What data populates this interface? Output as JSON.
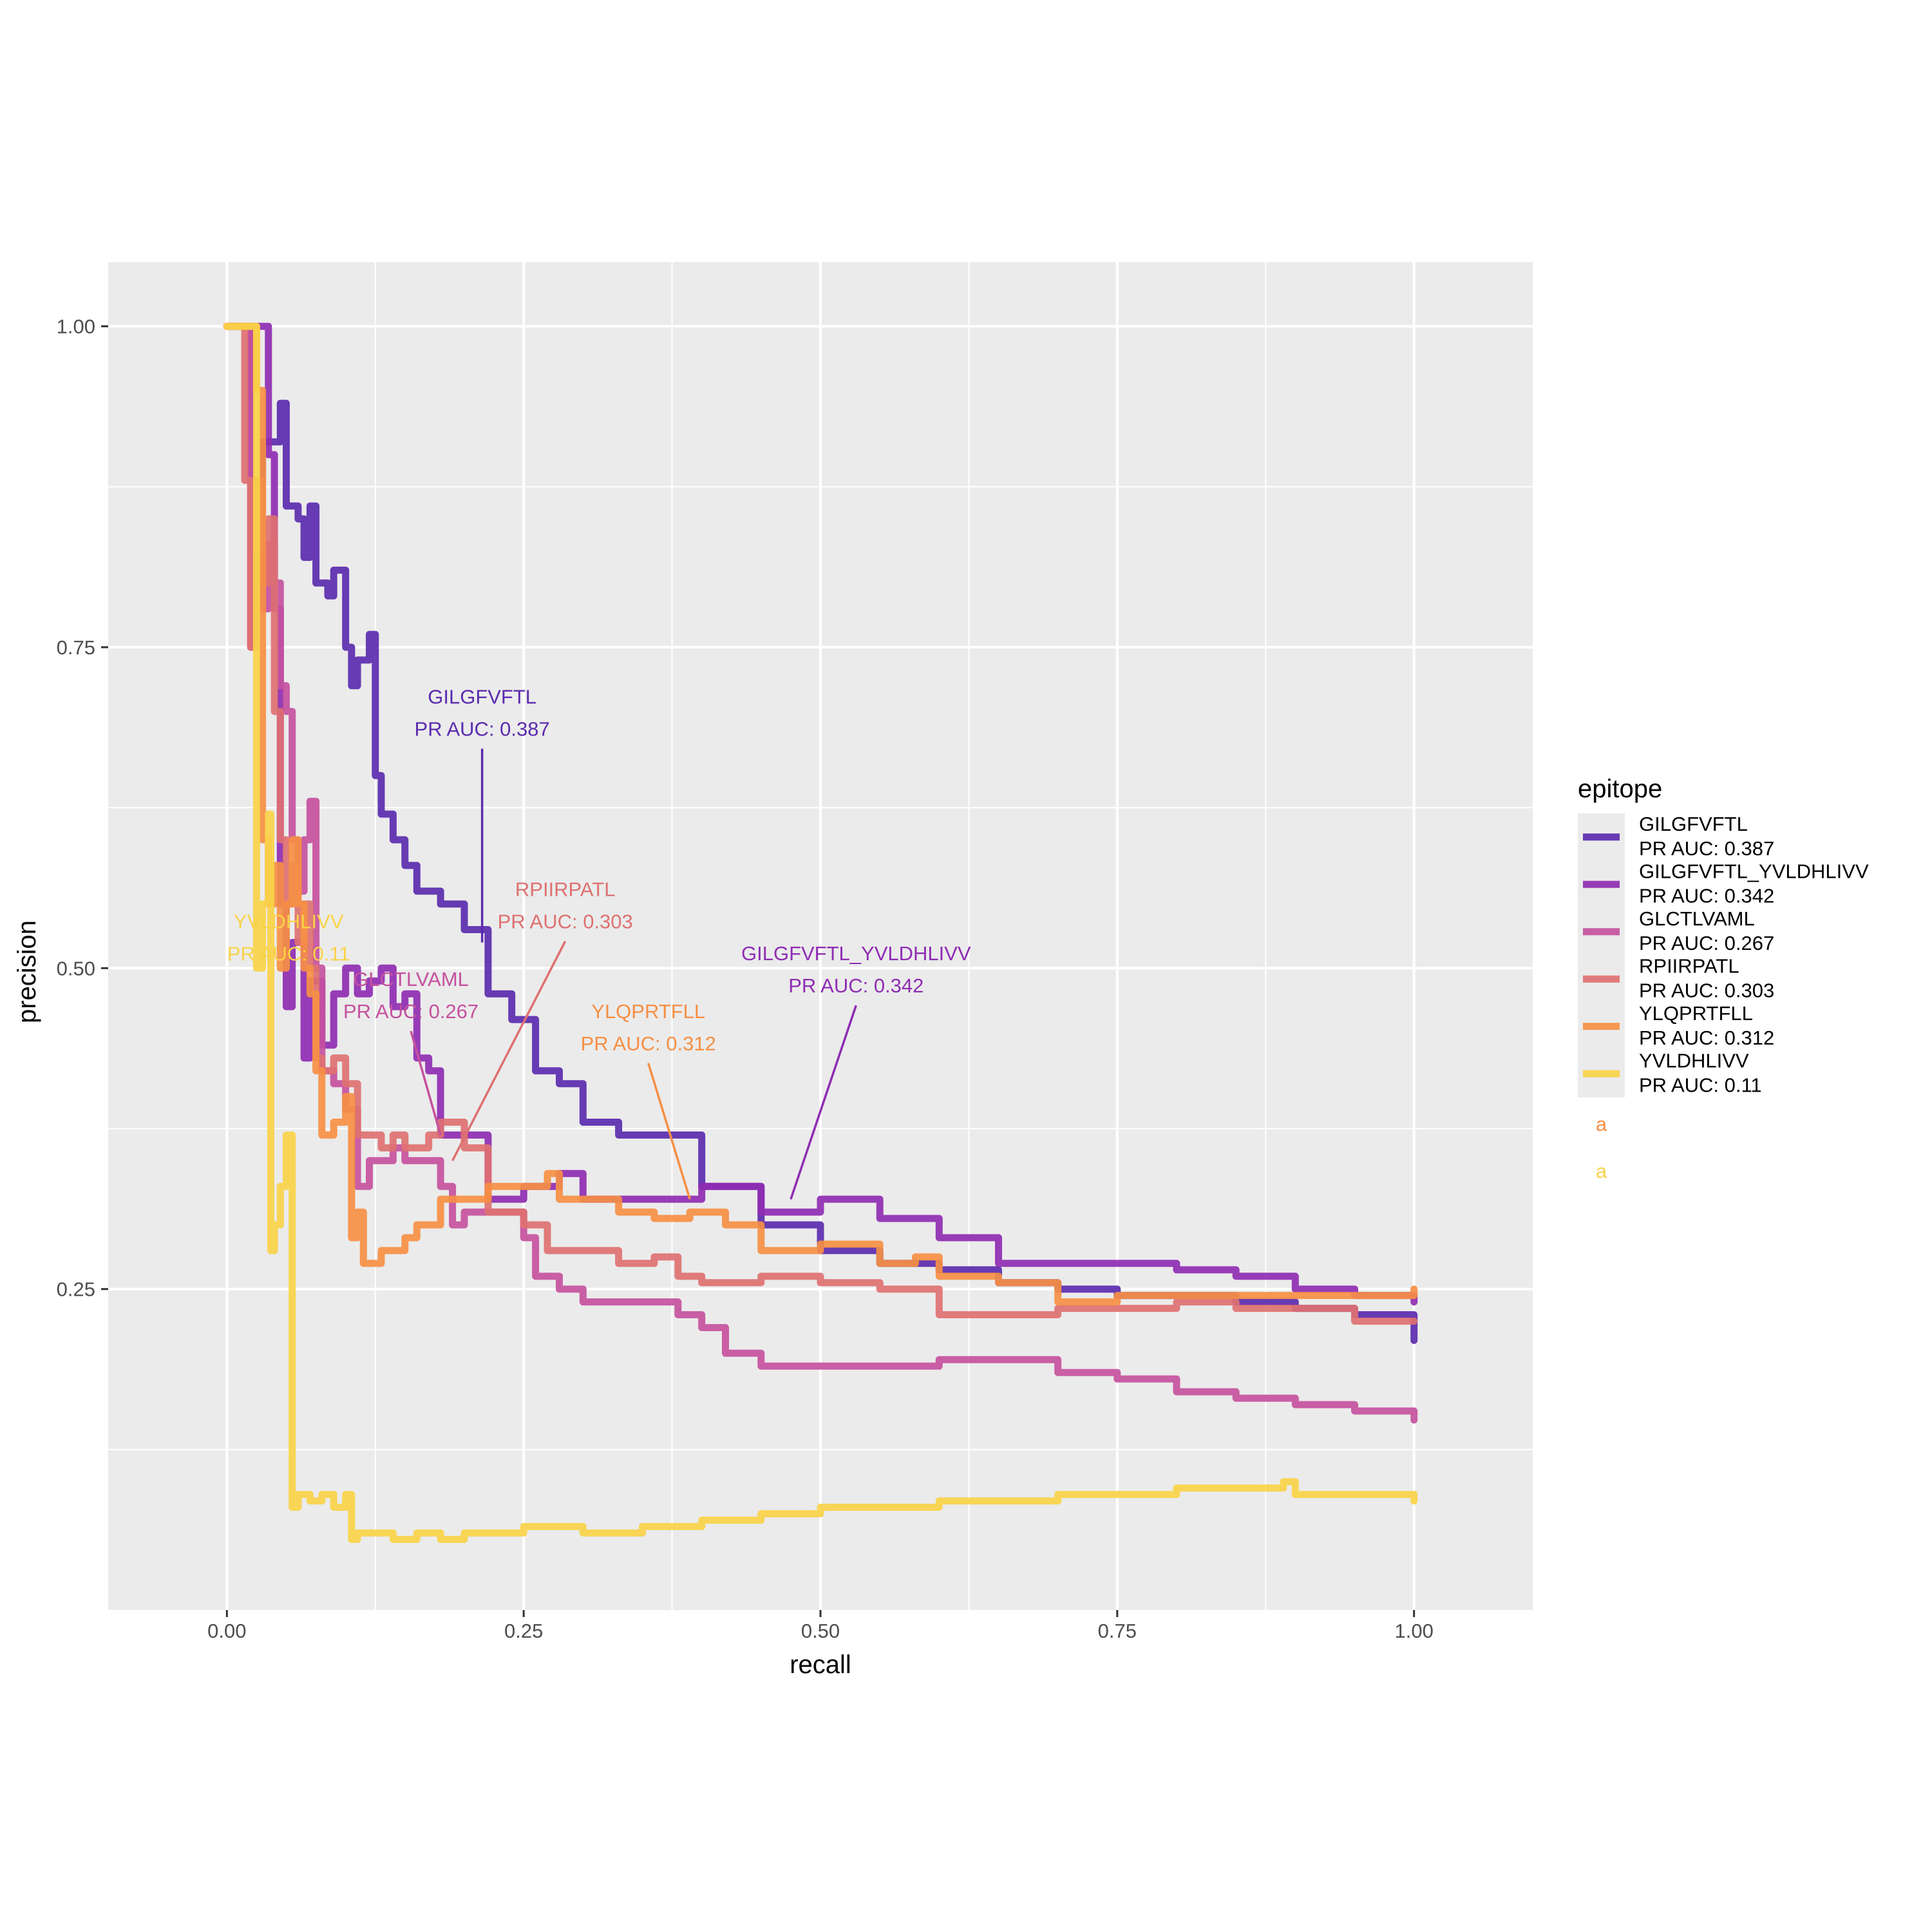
{
  "chart_data": {
    "type": "line",
    "xlabel": "recall",
    "ylabel": "precision",
    "xlim": [
      -0.1,
      1.1
    ],
    "ylim": [
      0.0,
      1.05
    ],
    "x_ticks": [
      0.0,
      0.25,
      0.5,
      0.75,
      1.0
    ],
    "x_tick_labels": [
      "0.00",
      "0.25",
      "0.50",
      "0.75",
      "1.00"
    ],
    "y_ticks": [
      0.25,
      0.5,
      0.75,
      1.0
    ],
    "y_tick_labels": [
      "0.25",
      "0.50",
      "0.75",
      "1.00"
    ],
    "grid": true,
    "legend": {
      "title": "epitope",
      "placement": "right",
      "extra_keys": [
        {
          "text": "a",
          "color": "#F68F44"
        },
        {
          "text": "a",
          "color": "#F9D348"
        }
      ]
    },
    "series": [
      {
        "name": "GILGFVFTL",
        "label": "PR AUC: 0.387",
        "color": "#5B2BAE",
        "annotation": {
          "x": 0.215,
          "y": 0.68,
          "point": [
            0.215,
            0.52
          ]
        },
        "points": [
          [
            0.0,
            1.0
          ],
          [
            0.02,
            0.88
          ],
          [
            0.03,
            0.91
          ],
          [
            0.045,
            0.94
          ],
          [
            0.05,
            0.86
          ],
          [
            0.06,
            0.85
          ],
          [
            0.065,
            0.82
          ],
          [
            0.07,
            0.86
          ],
          [
            0.075,
            0.8
          ],
          [
            0.08,
            0.8
          ],
          [
            0.085,
            0.79
          ],
          [
            0.09,
            0.81
          ],
          [
            0.1,
            0.75
          ],
          [
            0.105,
            0.72
          ],
          [
            0.11,
            0.74
          ],
          [
            0.12,
            0.76
          ],
          [
            0.125,
            0.65
          ],
          [
            0.13,
            0.62
          ],
          [
            0.14,
            0.6
          ],
          [
            0.15,
            0.58
          ],
          [
            0.16,
            0.56
          ],
          [
            0.18,
            0.55
          ],
          [
            0.2,
            0.53
          ],
          [
            0.22,
            0.48
          ],
          [
            0.24,
            0.46
          ],
          [
            0.26,
            0.42
          ],
          [
            0.28,
            0.41
          ],
          [
            0.3,
            0.38
          ],
          [
            0.33,
            0.37
          ],
          [
            0.36,
            0.37
          ],
          [
            0.4,
            0.33
          ],
          [
            0.45,
            0.3
          ],
          [
            0.5,
            0.28
          ],
          [
            0.55,
            0.27
          ],
          [
            0.6,
            0.265
          ],
          [
            0.65,
            0.255
          ],
          [
            0.7,
            0.25
          ],
          [
            0.75,
            0.245
          ],
          [
            0.8,
            0.245
          ],
          [
            0.85,
            0.24
          ],
          [
            0.9,
            0.235
          ],
          [
            0.95,
            0.23
          ],
          [
            1.0,
            0.21
          ]
        ]
      },
      {
        "name": "GILGFVFTL_YVLDHLIVV",
        "label": "PR AUC: 0.342",
        "color": "#8F2DB2",
        "annotation": {
          "x": 0.53,
          "y": 0.48,
          "point": [
            0.475,
            0.32
          ]
        },
        "points": [
          [
            0.0,
            1.0
          ],
          [
            0.03,
            1.0
          ],
          [
            0.035,
            0.9
          ],
          [
            0.04,
            0.78
          ],
          [
            0.045,
            0.55
          ],
          [
            0.05,
            0.47
          ],
          [
            0.055,
            0.52
          ],
          [
            0.065,
            0.43
          ],
          [
            0.07,
            0.49
          ],
          [
            0.08,
            0.44
          ],
          [
            0.09,
            0.48
          ],
          [
            0.1,
            0.5
          ],
          [
            0.11,
            0.48
          ],
          [
            0.12,
            0.49
          ],
          [
            0.13,
            0.5
          ],
          [
            0.14,
            0.47
          ],
          [
            0.15,
            0.48
          ],
          [
            0.16,
            0.43
          ],
          [
            0.17,
            0.42
          ],
          [
            0.18,
            0.37
          ],
          [
            0.2,
            0.37
          ],
          [
            0.22,
            0.32
          ],
          [
            0.25,
            0.33
          ],
          [
            0.28,
            0.34
          ],
          [
            0.3,
            0.32
          ],
          [
            0.35,
            0.32
          ],
          [
            0.4,
            0.33
          ],
          [
            0.45,
            0.31
          ],
          [
            0.5,
            0.32
          ],
          [
            0.55,
            0.305
          ],
          [
            0.6,
            0.29
          ],
          [
            0.65,
            0.27
          ],
          [
            0.7,
            0.27
          ],
          [
            0.75,
            0.27
          ],
          [
            0.8,
            0.265
          ],
          [
            0.85,
            0.26
          ],
          [
            0.9,
            0.25
          ],
          [
            0.95,
            0.245
          ],
          [
            1.0,
            0.24
          ]
        ]
      },
      {
        "name": "GLCTLVAML",
        "label": "PR AUC: 0.267",
        "color": "#C5519E",
        "annotation": {
          "x": 0.155,
          "y": 0.46,
          "point": [
            0.18,
            0.37
          ]
        },
        "points": [
          [
            0.0,
            1.0
          ],
          [
            0.015,
            1.0
          ],
          [
            0.02,
            0.75
          ],
          [
            0.025,
            0.82
          ],
          [
            0.03,
            0.78
          ],
          [
            0.035,
            0.83
          ],
          [
            0.04,
            0.8
          ],
          [
            0.045,
            0.72
          ],
          [
            0.05,
            0.7
          ],
          [
            0.055,
            0.6
          ],
          [
            0.06,
            0.56
          ],
          [
            0.065,
            0.6
          ],
          [
            0.07,
            0.63
          ],
          [
            0.075,
            0.5
          ],
          [
            0.08,
            0.42
          ],
          [
            0.09,
            0.41
          ],
          [
            0.1,
            0.39
          ],
          [
            0.11,
            0.33
          ],
          [
            0.12,
            0.35
          ],
          [
            0.14,
            0.36
          ],
          [
            0.15,
            0.35
          ],
          [
            0.17,
            0.35
          ],
          [
            0.18,
            0.33
          ],
          [
            0.19,
            0.3
          ],
          [
            0.2,
            0.31
          ],
          [
            0.23,
            0.31
          ],
          [
            0.25,
            0.29
          ],
          [
            0.26,
            0.26
          ],
          [
            0.28,
            0.25
          ],
          [
            0.3,
            0.24
          ],
          [
            0.33,
            0.24
          ],
          [
            0.36,
            0.24
          ],
          [
            0.38,
            0.23
          ],
          [
            0.4,
            0.22
          ],
          [
            0.42,
            0.2
          ],
          [
            0.45,
            0.19
          ],
          [
            0.5,
            0.19
          ],
          [
            0.55,
            0.19
          ],
          [
            0.6,
            0.195
          ],
          [
            0.65,
            0.195
          ],
          [
            0.7,
            0.185
          ],
          [
            0.75,
            0.18
          ],
          [
            0.8,
            0.17
          ],
          [
            0.85,
            0.165
          ],
          [
            0.9,
            0.16
          ],
          [
            0.95,
            0.155
          ],
          [
            1.0,
            0.148
          ]
        ]
      },
      {
        "name": "RPIIRPATL",
        "label": "PR AUC: 0.303",
        "color": "#DE7171",
        "annotation": {
          "x": 0.285,
          "y": 0.53,
          "point": [
            0.19,
            0.35
          ]
        },
        "points": [
          [
            0.0,
            1.0
          ],
          [
            0.01,
            1.0
          ],
          [
            0.015,
            0.88
          ],
          [
            0.02,
            0.75
          ],
          [
            0.025,
            0.88
          ],
          [
            0.03,
            0.8
          ],
          [
            0.035,
            0.85
          ],
          [
            0.04,
            0.7
          ],
          [
            0.045,
            0.6
          ],
          [
            0.05,
            0.55
          ],
          [
            0.055,
            0.58
          ],
          [
            0.06,
            0.52
          ],
          [
            0.065,
            0.55
          ],
          [
            0.07,
            0.5
          ],
          [
            0.075,
            0.43
          ],
          [
            0.08,
            0.42
          ],
          [
            0.09,
            0.43
          ],
          [
            0.1,
            0.41
          ],
          [
            0.11,
            0.37
          ],
          [
            0.12,
            0.37
          ],
          [
            0.13,
            0.36
          ],
          [
            0.14,
            0.37
          ],
          [
            0.15,
            0.36
          ],
          [
            0.17,
            0.37
          ],
          [
            0.18,
            0.38
          ],
          [
            0.2,
            0.36
          ],
          [
            0.22,
            0.31
          ],
          [
            0.25,
            0.3
          ],
          [
            0.27,
            0.28
          ],
          [
            0.3,
            0.28
          ],
          [
            0.33,
            0.27
          ],
          [
            0.36,
            0.275
          ],
          [
            0.38,
            0.26
          ],
          [
            0.4,
            0.255
          ],
          [
            0.45,
            0.26
          ],
          [
            0.5,
            0.255
          ],
          [
            0.55,
            0.25
          ],
          [
            0.6,
            0.23
          ],
          [
            0.65,
            0.23
          ],
          [
            0.7,
            0.235
          ],
          [
            0.75,
            0.235
          ],
          [
            0.8,
            0.24
          ],
          [
            0.85,
            0.235
          ],
          [
            0.9,
            0.235
          ],
          [
            0.95,
            0.225
          ],
          [
            1.0,
            0.225
          ]
        ]
      },
      {
        "name": "YLQPRTFLL",
        "label": "PR AUC: 0.312",
        "color": "#F68F44",
        "annotation": {
          "x": 0.355,
          "y": 0.435,
          "point": [
            0.39,
            0.32
          ]
        },
        "points": [
          [
            0.0,
            1.0
          ],
          [
            0.02,
            1.0
          ],
          [
            0.025,
            0.95
          ],
          [
            0.03,
            0.6
          ],
          [
            0.035,
            0.55
          ],
          [
            0.04,
            0.58
          ],
          [
            0.045,
            0.5
          ],
          [
            0.05,
            0.55
          ],
          [
            0.055,
            0.6
          ],
          [
            0.06,
            0.55
          ],
          [
            0.065,
            0.5
          ],
          [
            0.07,
            0.48
          ],
          [
            0.075,
            0.42
          ],
          [
            0.08,
            0.37
          ],
          [
            0.09,
            0.38
          ],
          [
            0.1,
            0.4
          ],
          [
            0.105,
            0.29
          ],
          [
            0.11,
            0.31
          ],
          [
            0.115,
            0.27
          ],
          [
            0.12,
            0.27
          ],
          [
            0.13,
            0.28
          ],
          [
            0.15,
            0.29
          ],
          [
            0.16,
            0.3
          ],
          [
            0.18,
            0.32
          ],
          [
            0.2,
            0.32
          ],
          [
            0.22,
            0.33
          ],
          [
            0.25,
            0.33
          ],
          [
            0.27,
            0.34
          ],
          [
            0.28,
            0.32
          ],
          [
            0.3,
            0.32
          ],
          [
            0.33,
            0.31
          ],
          [
            0.36,
            0.305
          ],
          [
            0.39,
            0.31
          ],
          [
            0.42,
            0.3
          ],
          [
            0.45,
            0.28
          ],
          [
            0.5,
            0.285
          ],
          [
            0.55,
            0.27
          ],
          [
            0.58,
            0.275
          ],
          [
            0.6,
            0.26
          ],
          [
            0.65,
            0.255
          ],
          [
            0.7,
            0.24
          ],
          [
            0.75,
            0.245
          ],
          [
            0.8,
            0.245
          ],
          [
            0.85,
            0.245
          ],
          [
            0.9,
            0.245
          ],
          [
            0.95,
            0.245
          ],
          [
            1.0,
            0.25
          ]
        ]
      },
      {
        "name": "YVLDHLIVV",
        "label": "PR AUC: 0.11",
        "color": "#F9D348",
        "annotation": {
          "x": 0.052,
          "y": 0.505,
          "point": [
            0.052,
            0.505
          ]
        },
        "points": [
          [
            0.0,
            1.0
          ],
          [
            0.02,
            1.0
          ],
          [
            0.025,
            0.5
          ],
          [
            0.03,
            0.55
          ],
          [
            0.035,
            0.62
          ],
          [
            0.037,
            0.28
          ],
          [
            0.04,
            0.3
          ],
          [
            0.045,
            0.33
          ],
          [
            0.05,
            0.37
          ],
          [
            0.055,
            0.08
          ],
          [
            0.06,
            0.09
          ],
          [
            0.07,
            0.085
          ],
          [
            0.08,
            0.09
          ],
          [
            0.09,
            0.08
          ],
          [
            0.1,
            0.09
          ],
          [
            0.105,
            0.055
          ],
          [
            0.11,
            0.06
          ],
          [
            0.13,
            0.06
          ],
          [
            0.14,
            0.055
          ],
          [
            0.16,
            0.06
          ],
          [
            0.18,
            0.055
          ],
          [
            0.2,
            0.06
          ],
          [
            0.25,
            0.065
          ],
          [
            0.3,
            0.06
          ],
          [
            0.35,
            0.065
          ],
          [
            0.4,
            0.07
          ],
          [
            0.45,
            0.075
          ],
          [
            0.5,
            0.08
          ],
          [
            0.55,
            0.08
          ],
          [
            0.6,
            0.085
          ],
          [
            0.65,
            0.085
          ],
          [
            0.7,
            0.09
          ],
          [
            0.75,
            0.09
          ],
          [
            0.8,
            0.095
          ],
          [
            0.85,
            0.095
          ],
          [
            0.89,
            0.1
          ],
          [
            0.9,
            0.09
          ],
          [
            0.95,
            0.09
          ],
          [
            1.0,
            0.085
          ]
        ]
      }
    ]
  }
}
